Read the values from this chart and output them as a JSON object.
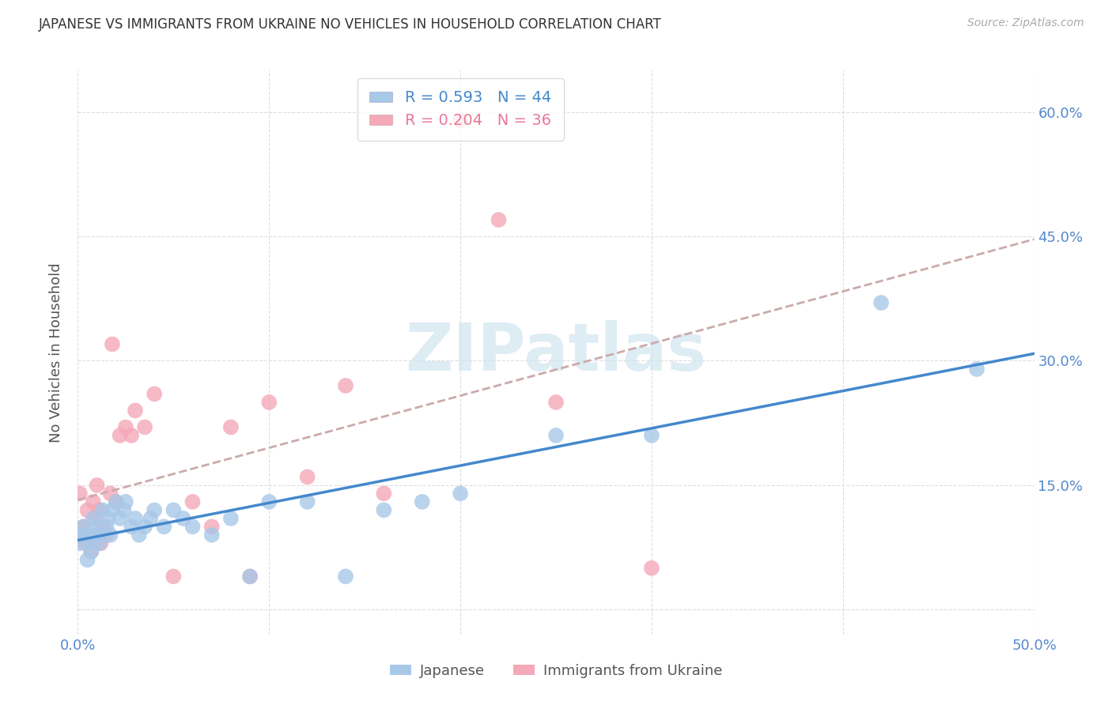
{
  "title": "JAPANESE VS IMMIGRANTS FROM UKRAINE NO VEHICLES IN HOUSEHOLD CORRELATION CHART",
  "source": "Source: ZipAtlas.com",
  "ylabel": "No Vehicles in Household",
  "x_min": 0.0,
  "x_max": 0.5,
  "y_min": -0.03,
  "y_max": 0.65,
  "x_ticks": [
    0.0,
    0.1,
    0.2,
    0.3,
    0.4,
    0.5
  ],
  "x_tick_labels": [
    "0.0%",
    "",
    "",
    "",
    "",
    "50.0%"
  ],
  "y_ticks": [
    0.0,
    0.15,
    0.3,
    0.45,
    0.6
  ],
  "y_tick_labels_right": [
    "",
    "15.0%",
    "30.0%",
    "45.0%",
    "60.0%"
  ],
  "legend_blue_r": "R = 0.593",
  "legend_blue_n": "N = 44",
  "legend_pink_r": "R = 0.204",
  "legend_pink_n": "N = 36",
  "legend_label_blue": "Japanese",
  "legend_label_pink": "Immigrants from Ukraine",
  "blue_color": "#a8c8e8",
  "pink_color": "#f4a8b8",
  "blue_line_color": "#4488cc",
  "pink_line_color": "#e87898",
  "pink_line_dash_color": "#ccaaaa",
  "watermark_text": "ZIPatlas",
  "watermark_color": "#d0e4f0",
  "japanese_x": [
    0.001,
    0.002,
    0.003,
    0.004,
    0.005,
    0.006,
    0.007,
    0.008,
    0.009,
    0.01,
    0.011,
    0.012,
    0.013,
    0.015,
    0.016,
    0.017,
    0.018,
    0.02,
    0.022,
    0.024,
    0.025,
    0.028,
    0.03,
    0.032,
    0.035,
    0.038,
    0.04,
    0.045,
    0.05,
    0.055,
    0.06,
    0.07,
    0.08,
    0.09,
    0.1,
    0.12,
    0.14,
    0.16,
    0.18,
    0.2,
    0.25,
    0.3,
    0.42,
    0.47
  ],
  "japanese_y": [
    0.08,
    0.09,
    0.1,
    0.09,
    0.06,
    0.08,
    0.07,
    0.11,
    0.09,
    0.1,
    0.08,
    0.09,
    0.12,
    0.1,
    0.11,
    0.09,
    0.12,
    0.13,
    0.11,
    0.12,
    0.13,
    0.1,
    0.11,
    0.09,
    0.1,
    0.11,
    0.12,
    0.1,
    0.12,
    0.11,
    0.1,
    0.09,
    0.11,
    0.04,
    0.13,
    0.13,
    0.04,
    0.12,
    0.13,
    0.14,
    0.21,
    0.21,
    0.37,
    0.29
  ],
  "ukraine_x": [
    0.001,
    0.002,
    0.003,
    0.004,
    0.005,
    0.006,
    0.007,
    0.008,
    0.009,
    0.01,
    0.011,
    0.012,
    0.013,
    0.015,
    0.017,
    0.018,
    0.02,
    0.022,
    0.025,
    0.028,
    0.03,
    0.035,
    0.04,
    0.05,
    0.06,
    0.07,
    0.08,
    0.09,
    0.1,
    0.12,
    0.14,
    0.16,
    0.2,
    0.22,
    0.25,
    0.3
  ],
  "ukraine_y": [
    0.14,
    0.09,
    0.1,
    0.08,
    0.12,
    0.09,
    0.07,
    0.13,
    0.11,
    0.15,
    0.12,
    0.08,
    0.1,
    0.09,
    0.14,
    0.32,
    0.13,
    0.21,
    0.22,
    0.21,
    0.24,
    0.22,
    0.26,
    0.04,
    0.13,
    0.1,
    0.22,
    0.04,
    0.25,
    0.16,
    0.27,
    0.14,
    0.59,
    0.47,
    0.25,
    0.05
  ],
  "background_color": "#ffffff",
  "grid_color": "#dddddd",
  "tick_color": "#5588cc"
}
